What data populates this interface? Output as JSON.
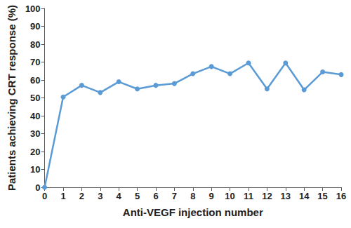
{
  "chart_data": {
    "type": "line",
    "x_label": "Anti-VEGF injection number",
    "y_label": "Patients achieving CRT response (%)",
    "x": [
      0,
      1,
      2,
      3,
      4,
      5,
      6,
      7,
      8,
      9,
      10,
      11,
      12,
      13,
      14,
      15,
      16
    ],
    "values": [
      0,
      50.5,
      57,
      53,
      59,
      55,
      57,
      58,
      63.5,
      67.5,
      63.5,
      69.5,
      55,
      69.5,
      54.5,
      64.5,
      63
    ],
    "color": "#5b9bd5",
    "marker": "circle",
    "line_style": "solid",
    "xlim": [
      0,
      16
    ],
    "xticks": [
      0,
      1,
      2,
      3,
      4,
      5,
      6,
      7,
      8,
      9,
      10,
      11,
      12,
      13,
      14,
      15,
      16
    ],
    "ylim": [
      0,
      100
    ],
    "yticks": [
      0,
      10,
      20,
      30,
      40,
      50,
      60,
      70,
      80,
      90,
      100
    ],
    "grid": false
  }
}
